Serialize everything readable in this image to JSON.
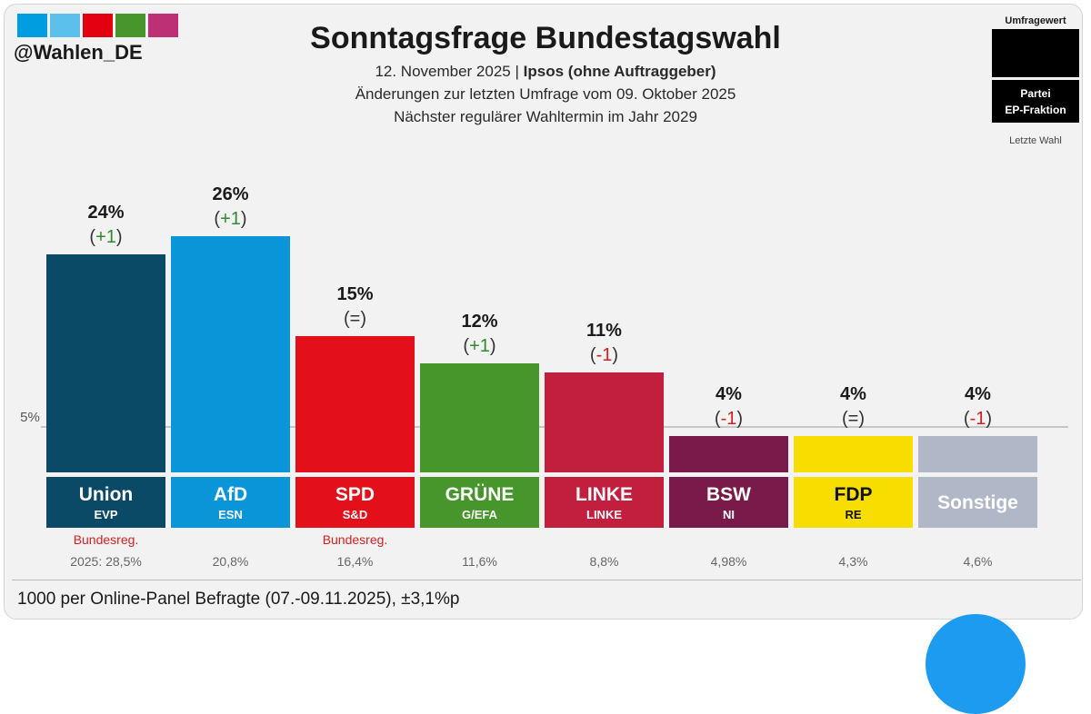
{
  "header": {
    "handle": "@Wahlen_DE",
    "title": "Sonntagsfrage Bundestagswahl",
    "line1_date": "12. November 2025",
    "line1_sep": "|",
    "line1_pollster": "Ipsos (ohne Auftraggeber)",
    "line2": "Änderungen zur letzten Umfrage vom 09. Oktober 2025",
    "line3": "Nächster regulärer Wahltermin im Jahr 2029"
  },
  "brand_colors": [
    "#009ee0",
    "#5bc0eb",
    "#e3000f",
    "#46962b",
    "#be3075"
  ],
  "legend": {
    "umfragewert": "Umfragewert",
    "partei": "Partei",
    "fraktion": "EP-Fraktion",
    "letzte_wahl": "Letzte Wahl"
  },
  "threshold_label": "5%",
  "chart_data": {
    "type": "bar",
    "threshold": 5,
    "ylim": [
      0,
      30
    ],
    "categories": [
      "Union",
      "AfD",
      "SPD",
      "GRÜNE",
      "LINKE",
      "BSW",
      "FDP",
      "Sonstige"
    ],
    "ep_groups": [
      "EVP",
      "ESN",
      "S&D",
      "G/EFA",
      "LINKE",
      "NI",
      "RE",
      ""
    ],
    "values": [
      24,
      26,
      15,
      12,
      11,
      4,
      4,
      4
    ],
    "value_labels": [
      "24%",
      "26%",
      "15%",
      "12%",
      "11%",
      "4%",
      "4%",
      "4%"
    ],
    "changes": [
      "(+1)",
      "(+1)",
      "(=)",
      "(+1)",
      "(-1)",
      "(-1)",
      "(=)",
      "(-1)"
    ],
    "change_inner": [
      "+1",
      "+1",
      "=",
      "+1",
      "-1",
      "-1",
      "=",
      "-1"
    ],
    "change_colors": [
      "#2e8b2e",
      "#2e8b2e",
      "#333333",
      "#2e8b2e",
      "#d32020",
      "#d32020",
      "#333333",
      "#d32020"
    ],
    "colors": [
      "#0b4a66",
      "#0b95d9",
      "#e3101b",
      "#46962b",
      "#c21f3e",
      "#7a1a4a",
      "#f7dd00",
      "#b0b8c8"
    ],
    "label_colors": [
      "#ffffff",
      "#ffffff",
      "#ffffff",
      "#ffffff",
      "#ffffff",
      "#ffffff",
      "#111111",
      "#ffffff"
    ],
    "gov_notes": [
      "Bundesreg.",
      "",
      "Bundesreg.",
      "",
      "",
      "",
      "",
      ""
    ],
    "last_election": [
      "2025: 28,5%",
      "20,8%",
      "16,4%",
      "11,6%",
      "8,8%",
      "4,98%",
      "4,3%",
      "4,6%"
    ]
  },
  "footer": "1000 per Online-Panel Befragte (07.-09.11.2025), ±3,1%p"
}
